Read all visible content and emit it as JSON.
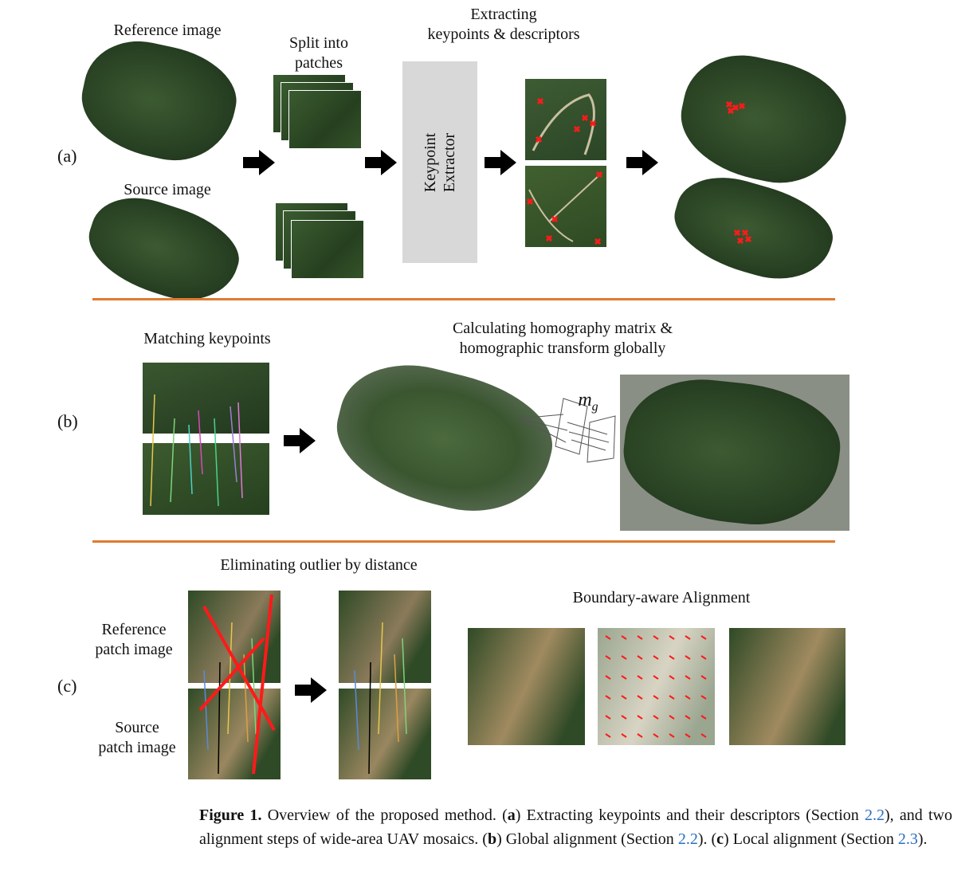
{
  "section_a": {
    "label": "(a)",
    "reference_label": "Reference image",
    "source_label": "Source image",
    "split_label_1": "Split into",
    "split_label_2": "patches",
    "extracting_label_1": "Extracting",
    "extracting_label_2": "keypoints & descriptors",
    "extractor_line_1": "Keypoint",
    "extractor_line_2": "Extractor"
  },
  "section_b": {
    "label": "(b)",
    "matching_label": "Matching keypoints",
    "homography_label_1": "Calculating homography matrix &",
    "homography_label_2": "homographic transform globally",
    "matrix_symbol": "m",
    "matrix_subscript": "g"
  },
  "section_c": {
    "label": "(c)",
    "eliminating_label": "Eliminating outlier by distance",
    "ref_patch_label_1": "Reference",
    "ref_patch_label_2": "patch image",
    "src_patch_label_1": "Source",
    "src_patch_label_2": "patch image",
    "boundary_label": "Boundary-aware Alignment"
  },
  "caption": {
    "figure": "Figure 1.",
    "text_1": " Overview of the proposed method. (",
    "a": "a",
    "text_2": ") Extracting keypoints and their descriptors (Section ",
    "ref_1": "2.2",
    "text_3": "), and two alignment steps of wide-area UAV mosaics. (",
    "b": "b",
    "text_4": ") Global alignment (Section ",
    "ref_2": "2.2",
    "text_5": "). (",
    "c": "c",
    "text_6": ") Local alignment (Section ",
    "ref_3": "2.3",
    "text_7": ")."
  },
  "colors": {
    "divider": "#e07b2e",
    "keypoint": "#ff1a1a",
    "extractor_box": "#d8d8d8",
    "link": "#2a6fc4"
  },
  "icons": [
    "arrow-right-icon",
    "keypoint-marker-icon"
  ]
}
